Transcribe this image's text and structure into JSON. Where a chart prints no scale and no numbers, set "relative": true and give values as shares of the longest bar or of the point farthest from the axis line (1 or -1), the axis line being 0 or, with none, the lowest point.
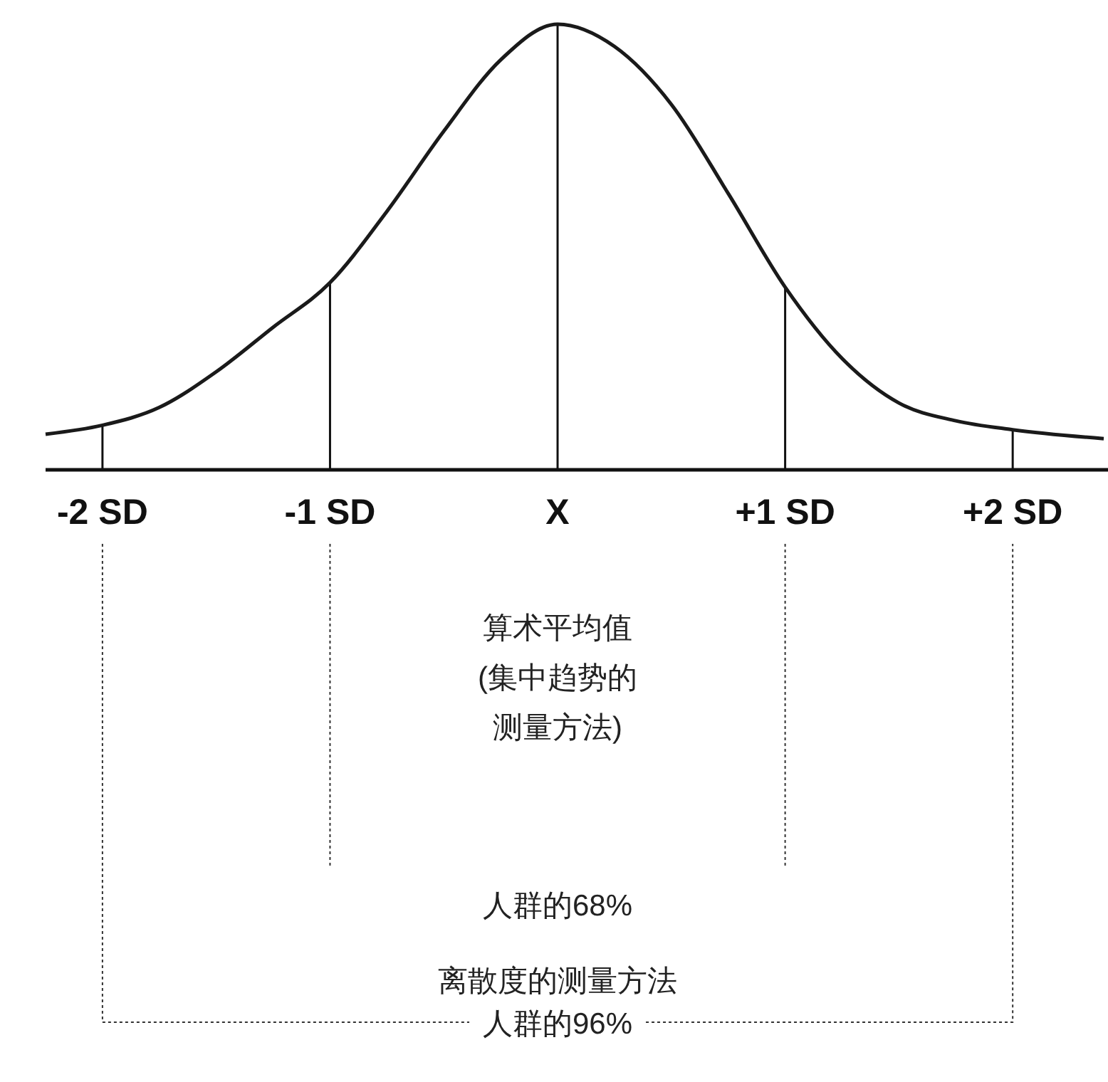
{
  "chart_data": {
    "type": "line",
    "relative": true,
    "color": "#1a1a1a",
    "x": [
      -2.25,
      -2,
      -1.75,
      -1.5,
      -1.25,
      -1,
      -0.75,
      -0.5,
      -0.25,
      0,
      0.25,
      0.5,
      0.75,
      1,
      1.25,
      1.5,
      1.75,
      2,
      2.4
    ],
    "values": [
      0.08,
      0.1,
      0.14,
      0.22,
      0.32,
      0.42,
      0.58,
      0.76,
      0.92,
      1,
      0.95,
      0.82,
      0.62,
      0.41,
      0.25,
      0.15,
      0.11,
      0.09,
      0.07
    ],
    "xlim": [
      -2.25,
      2.4
    ],
    "xticks": [
      {
        "value": -2,
        "label": "-2 SD"
      },
      {
        "value": -1,
        "label": "-1 SD"
      },
      {
        "value": 0,
        "label": "X"
      },
      {
        "value": 1,
        "label": "+1 SD"
      },
      {
        "value": 2,
        "label": "+2 SD"
      }
    ],
    "ref_lines": [
      {
        "axis": "x",
        "value": -2
      },
      {
        "axis": "x",
        "value": -1
      },
      {
        "axis": "x",
        "value": 0
      },
      {
        "axis": "x",
        "value": 1
      },
      {
        "axis": "x",
        "value": 2
      }
    ],
    "marker": "none",
    "line_style": "solid",
    "grid": false,
    "annotations": [
      "算术平均值",
      "(集中趋势的",
      "测量方法)",
      "人群的68%",
      "离散度的测量方法",
      "人群的96%"
    ]
  }
}
